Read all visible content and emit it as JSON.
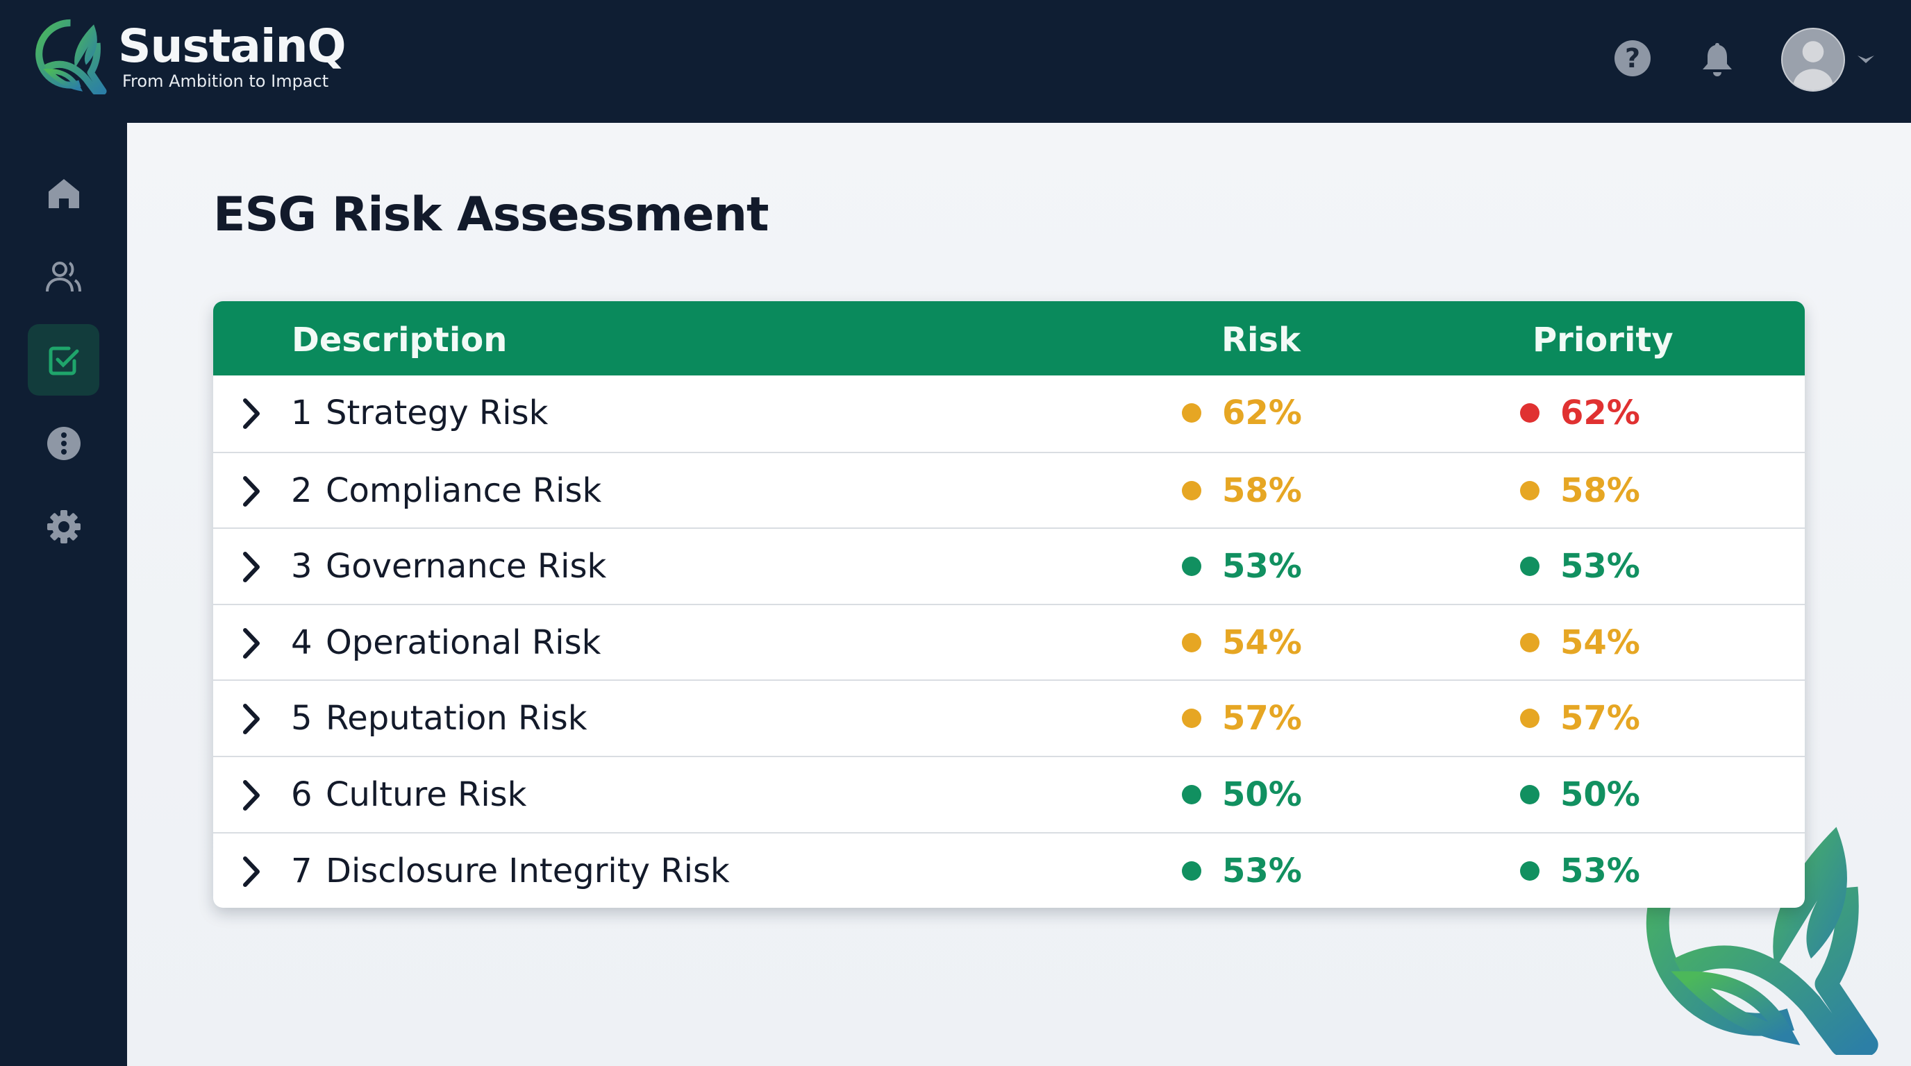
{
  "app": {
    "name": "SustainQ",
    "tagline": "From Ambition to Impact"
  },
  "topbar": {
    "icons": [
      "help-icon",
      "bell-icon",
      "avatar",
      "chevron-down-icon"
    ]
  },
  "sidebar": {
    "items": [
      {
        "icon": "home-icon",
        "active": false
      },
      {
        "icon": "users-icon",
        "active": false
      },
      {
        "icon": "checkbox-icon",
        "active": true
      },
      {
        "icon": "info-icon",
        "active": false
      },
      {
        "icon": "gear-icon",
        "active": false
      }
    ]
  },
  "page": {
    "title": "ESG Risk Assessment"
  },
  "colors": {
    "header": "#0a8a5c",
    "high": "#e03131",
    "medium": "#e6a623",
    "low": "#119060",
    "navy": "#0f1e33"
  },
  "table": {
    "headers": {
      "description": "Description",
      "risk": "Risk",
      "priority": "Priority"
    },
    "rows": [
      {
        "num": "1",
        "name": "Strategy Risk",
        "risk": "62%",
        "risk_level": "medium",
        "priority": "62%",
        "priority_level": "high"
      },
      {
        "num": "2",
        "name": "Compliance Risk",
        "risk": "58%",
        "risk_level": "medium",
        "priority": "58%",
        "priority_level": "medium"
      },
      {
        "num": "3",
        "name": "Governance Risk",
        "risk": "53%",
        "risk_level": "low",
        "priority": "53%",
        "priority_level": "low"
      },
      {
        "num": "4",
        "name": "Operational Risk",
        "risk": "54%",
        "risk_level": "medium",
        "priority": "54%",
        "priority_level": "medium"
      },
      {
        "num": "5",
        "name": "Reputation Risk",
        "risk": "57%",
        "risk_level": "medium",
        "priority": "57%",
        "priority_level": "medium"
      },
      {
        "num": "6",
        "name": "Culture Risk",
        "risk": "50%",
        "risk_level": "low",
        "priority": "50%",
        "priority_level": "low"
      },
      {
        "num": "7",
        "name": "Disclosure Integrity Risk",
        "risk": "53%",
        "risk_level": "low",
        "priority": "53%",
        "priority_level": "low"
      }
    ]
  }
}
